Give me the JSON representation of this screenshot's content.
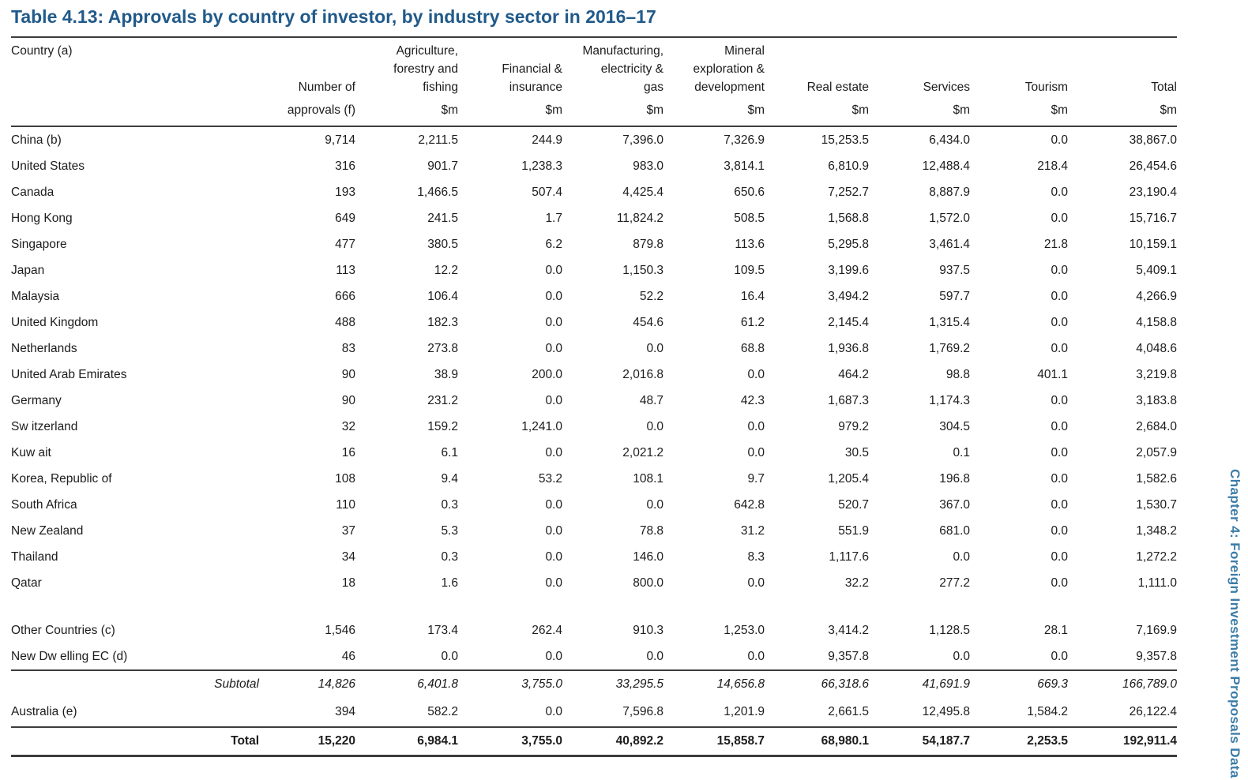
{
  "page": {
    "title": "Table 4.13: Approvals by country of investor, by industry sector in 2016–17",
    "sidebar": {
      "vertical_text": "Chapter 4: Foreign Investment Proposals Data"
    },
    "colors": {
      "title": "#215A8A",
      "sidebar_text": "#3B7CA8",
      "rule": "#3d3d3d",
      "text": "#1c1c1c"
    }
  },
  "table": {
    "columns": [
      {
        "label": "Country (a)",
        "unit": "",
        "align": "left"
      },
      {
        "label": "Number of",
        "unit": "approvals (f)",
        "align": "right"
      },
      {
        "label": "Agriculture,\nforestry and\nfishing",
        "unit": "$m",
        "align": "right"
      },
      {
        "label": "Financial &\ninsurance",
        "unit": "$m",
        "align": "right"
      },
      {
        "label": "Manufacturing,\nelectricity &\ngas",
        "unit": "$m",
        "align": "right"
      },
      {
        "label": "Mineral\nexploration &\ndevelopment",
        "unit": "$m",
        "align": "right"
      },
      {
        "label": "Real estate",
        "unit": "$m",
        "align": "right"
      },
      {
        "label": "Services",
        "unit": "$m",
        "align": "right"
      },
      {
        "label": "Tourism",
        "unit": "$m",
        "align": "right"
      },
      {
        "label": "Total",
        "unit": "$m",
        "align": "right"
      }
    ],
    "rows": [
      {
        "country": "China (b)",
        "style": "",
        "values": [
          "9,714",
          "2,211.5",
          "244.9",
          "7,396.0",
          "7,326.9",
          "15,253.5",
          "6,434.0",
          "0.0",
          "38,867.0"
        ]
      },
      {
        "country": "United States",
        "style": "",
        "values": [
          "316",
          "901.7",
          "1,238.3",
          "983.0",
          "3,814.1",
          "6,810.9",
          "12,488.4",
          "218.4",
          "26,454.6"
        ]
      },
      {
        "country": "Canada",
        "style": "",
        "values": [
          "193",
          "1,466.5",
          "507.4",
          "4,425.4",
          "650.6",
          "7,252.7",
          "8,887.9",
          "0.0",
          "23,190.4"
        ]
      },
      {
        "country": "Hong Kong",
        "style": "",
        "values": [
          "649",
          "241.5",
          "1.7",
          "11,824.2",
          "508.5",
          "1,568.8",
          "1,572.0",
          "0.0",
          "15,716.7"
        ]
      },
      {
        "country": "Singapore",
        "style": "",
        "values": [
          "477",
          "380.5",
          "6.2",
          "879.8",
          "113.6",
          "5,295.8",
          "3,461.4",
          "21.8",
          "10,159.1"
        ]
      },
      {
        "country": "Japan",
        "style": "",
        "values": [
          "113",
          "12.2",
          "0.0",
          "1,150.3",
          "109.5",
          "3,199.6",
          "937.5",
          "0.0",
          "5,409.1"
        ]
      },
      {
        "country": "Malaysia",
        "style": "",
        "values": [
          "666",
          "106.4",
          "0.0",
          "52.2",
          "16.4",
          "3,494.2",
          "597.7",
          "0.0",
          "4,266.9"
        ]
      },
      {
        "country": "United Kingdom",
        "style": "",
        "values": [
          "488",
          "182.3",
          "0.0",
          "454.6",
          "61.2",
          "2,145.4",
          "1,315.4",
          "0.0",
          "4,158.8"
        ]
      },
      {
        "country": "Netherlands",
        "style": "",
        "values": [
          "83",
          "273.8",
          "0.0",
          "0.0",
          "68.8",
          "1,936.8",
          "1,769.2",
          "0.0",
          "4,048.6"
        ]
      },
      {
        "country": "United Arab Emirates",
        "style": "",
        "values": [
          "90",
          "38.9",
          "200.0",
          "2,016.8",
          "0.0",
          "464.2",
          "98.8",
          "401.1",
          "3,219.8"
        ]
      },
      {
        "country": "Germany",
        "style": "",
        "values": [
          "90",
          "231.2",
          "0.0",
          "48.7",
          "42.3",
          "1,687.3",
          "1,174.3",
          "0.0",
          "3,183.8"
        ]
      },
      {
        "country": "Sw itzerland",
        "style": "",
        "values": [
          "32",
          "159.2",
          "1,241.0",
          "0.0",
          "0.0",
          "979.2",
          "304.5",
          "0.0",
          "2,684.0"
        ]
      },
      {
        "country": "Kuw ait",
        "style": "",
        "values": [
          "16",
          "6.1",
          "0.0",
          "2,021.2",
          "0.0",
          "30.5",
          "0.1",
          "0.0",
          "2,057.9"
        ]
      },
      {
        "country": "Korea, Republic of",
        "style": "",
        "values": [
          "108",
          "9.4",
          "53.2",
          "108.1",
          "9.7",
          "1,205.4",
          "196.8",
          "0.0",
          "1,582.6"
        ]
      },
      {
        "country": "South Africa",
        "style": "",
        "values": [
          "110",
          "0.3",
          "0.0",
          "0.0",
          "642.8",
          "520.7",
          "367.0",
          "0.0",
          "1,530.7"
        ]
      },
      {
        "country": "New Zealand",
        "style": "",
        "values": [
          "37",
          "5.3",
          "0.0",
          "78.8",
          "31.2",
          "551.9",
          "681.0",
          "0.0",
          "1,348.2"
        ]
      },
      {
        "country": "Thailand",
        "style": "",
        "values": [
          "34",
          "0.3",
          "0.0",
          "146.0",
          "8.3",
          "1,117.6",
          "0.0",
          "0.0",
          "1,272.2"
        ]
      },
      {
        "country": "Qatar",
        "style": "",
        "values": [
          "18",
          "1.6",
          "0.0",
          "800.0",
          "0.0",
          "32.2",
          "277.2",
          "0.0",
          "1,111.0"
        ]
      },
      {
        "country": "",
        "style": "spacer",
        "values": [
          "",
          "",
          "",
          "",
          "",
          "",
          "",
          "",
          ""
        ]
      },
      {
        "country": "Other Countries (c)",
        "style": "",
        "values": [
          "1,546",
          "173.4",
          "262.4",
          "910.3",
          "1,253.0",
          "3,414.2",
          "1,128.5",
          "28.1",
          "7,169.9"
        ]
      },
      {
        "country": "New Dw elling EC (d)",
        "style": "",
        "values": [
          "46",
          "0.0",
          "0.0",
          "0.0",
          "0.0",
          "9,357.8",
          "0.0",
          "0.0",
          "9,357.8"
        ]
      },
      {
        "country": "Subtotal",
        "style": "subtotal",
        "values": [
          "14,826",
          "6,401.8",
          "3,755.0",
          "33,295.5",
          "14,656.8",
          "66,318.6",
          "41,691.9",
          "669.3",
          "166,789.0"
        ]
      },
      {
        "country": "Australia (e)",
        "style": "australia",
        "values": [
          "394",
          "582.2",
          "0.0",
          "7,596.8",
          "1,201.9",
          "2,661.5",
          "12,495.8",
          "1,584.2",
          "26,122.4"
        ]
      },
      {
        "country": "Total",
        "style": "total",
        "values": [
          "15,220",
          "6,984.1",
          "3,755.0",
          "40,892.2",
          "15,858.7",
          "68,980.1",
          "54,187.7",
          "2,253.5",
          "192,911.4"
        ]
      }
    ]
  }
}
